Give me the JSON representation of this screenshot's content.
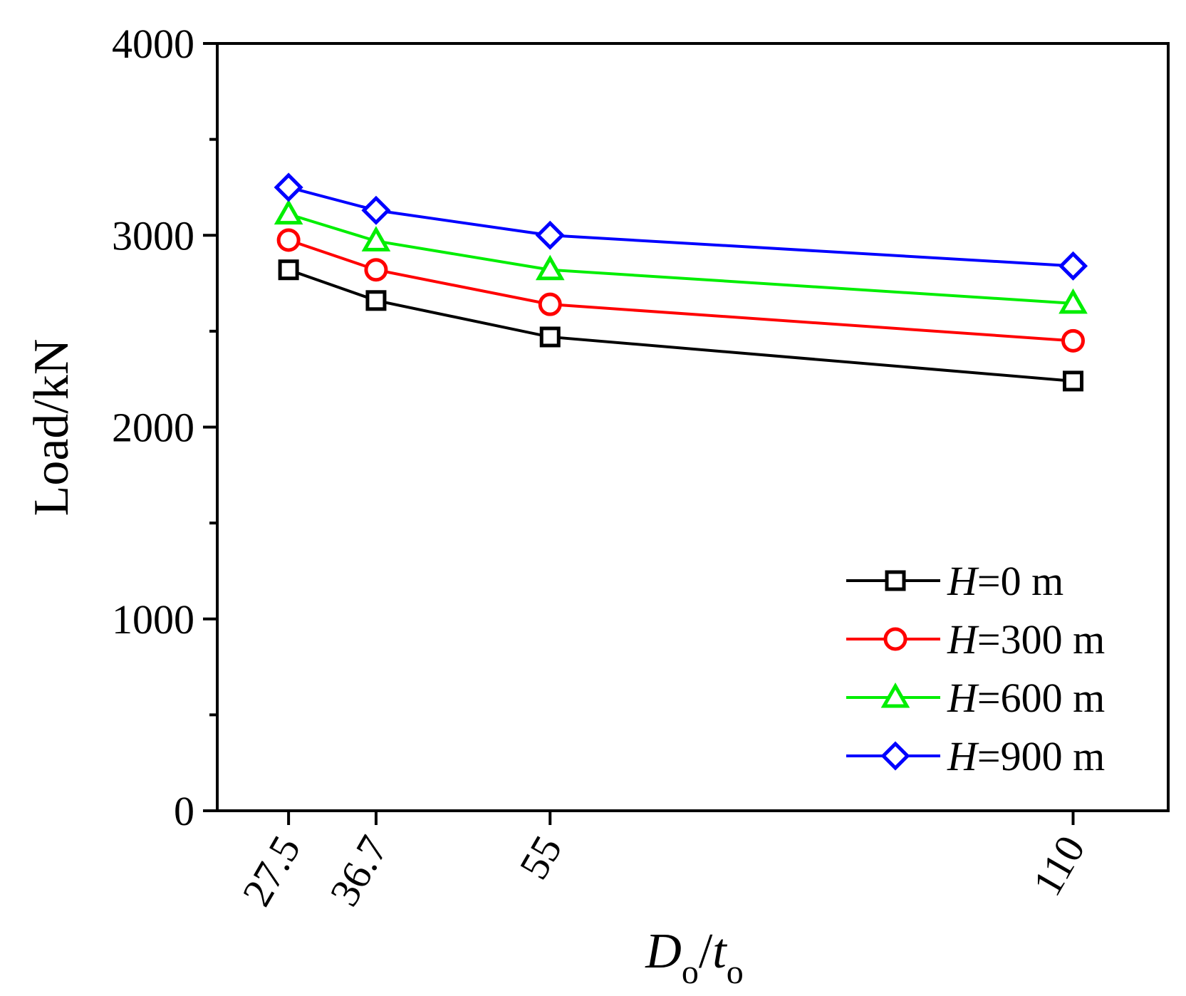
{
  "chart_data": {
    "type": "line",
    "x": [
      27.5,
      36.7,
      55,
      110
    ],
    "x_tick_labels": [
      "27.5",
      "36.7",
      "55",
      "110"
    ],
    "xlim": [
      20,
      120
    ],
    "ylim": [
      0,
      4000
    ],
    "y_ticks": [
      0,
      1000,
      2000,
      3000,
      4000
    ],
    "y_tick_labels": [
      "0",
      "1000",
      "2000",
      "3000",
      "4000"
    ],
    "y_minor_step": 500,
    "grid": false,
    "xlabel": {
      "main": "D",
      "sub1": "o",
      "sep": "/",
      "main2": "t",
      "sub2": "o"
    },
    "ylabel": "Load/kN",
    "legend_position": "bottom-right",
    "series": [
      {
        "name": "H=0 m",
        "prefix": "H",
        "suffix": "=0 m",
        "marker": "square",
        "color": "#000000",
        "values": [
          2820,
          2660,
          2470,
          2240
        ]
      },
      {
        "name": "H=300 m",
        "prefix": "H",
        "suffix": "=300 m",
        "marker": "circle",
        "color": "#ff0000",
        "values": [
          2975,
          2820,
          2640,
          2450
        ]
      },
      {
        "name": "H=600 m",
        "prefix": "H",
        "suffix": "=600 m",
        "marker": "triangle",
        "color": "#00ee00",
        "values": [
          3110,
          2970,
          2820,
          2645
        ]
      },
      {
        "name": "H=900 m",
        "prefix": "H",
        "suffix": "=900 m",
        "marker": "diamond",
        "color": "#0000ff",
        "values": [
          3250,
          3130,
          3000,
          2840
        ]
      }
    ]
  }
}
